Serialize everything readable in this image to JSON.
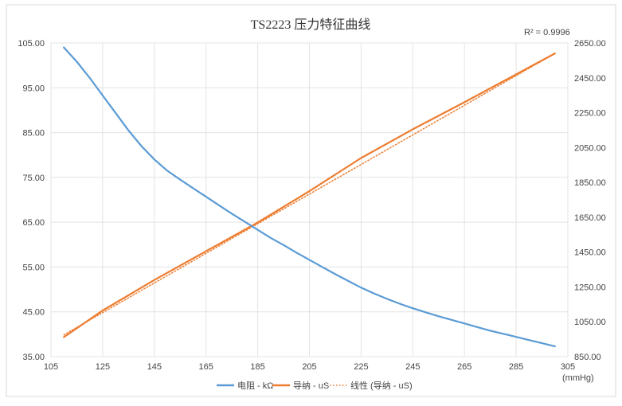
{
  "chart_data": {
    "type": "line",
    "title": "TS2223 压力特征曲线",
    "r_squared": "R² = 0.9996",
    "x_unit": "(mmHg)",
    "x_ticks": [
      "105",
      "125",
      "145",
      "165",
      "185",
      "205",
      "225",
      "245",
      "265",
      "285",
      "305"
    ],
    "y_left_ticks": [
      "35.00",
      "45.00",
      "55.00",
      "65.00",
      "75.00",
      "85.00",
      "95.00",
      "105.00"
    ],
    "y_right_ticks": [
      "850.00",
      "1050.00",
      "1250.00",
      "1450.00",
      "1650.00",
      "1850.00",
      "2050.00",
      "2250.00",
      "2450.00",
      "2650.00"
    ],
    "xlim": [
      105,
      305
    ],
    "ylim_left": [
      35,
      105
    ],
    "ylim_right": [
      850,
      2650
    ],
    "grid": true,
    "legend_position": "bottom",
    "series": [
      {
        "name": "电阻 - kΩ",
        "axis": "left",
        "color": "#5b9bd5",
        "style": "solid",
        "x": [
          110,
          115,
          120,
          125,
          130,
          135,
          140,
          145,
          150,
          155,
          160,
          165,
          170,
          175,
          180,
          185,
          190,
          195,
          200,
          205,
          210,
          215,
          220,
          225,
          230,
          235,
          240,
          245,
          250,
          255,
          260,
          265,
          270,
          275,
          280,
          285,
          290,
          295,
          300
        ],
        "y": [
          104,
          100.8,
          97.2,
          93.3,
          89.4,
          85.5,
          82.0,
          79.0,
          76.5,
          74.5,
          72.6,
          70.7,
          68.8,
          66.9,
          65.1,
          63.3,
          61.5,
          59.9,
          58.2,
          56.6,
          55.0,
          53.4,
          51.9,
          50.4,
          49.1,
          47.9,
          46.8,
          45.8,
          44.9,
          44.0,
          43.2,
          42.4,
          41.6,
          40.8,
          40.1,
          39.4,
          38.7,
          38.0,
          37.3
        ]
      },
      {
        "name": "导纳 - uS",
        "axis": "right",
        "color": "#ed7d31",
        "style": "solid",
        "x": [
          110,
          125,
          145,
          165,
          185,
          205,
          225,
          245,
          265,
          285,
          300
        ],
        "y": [
          962,
          1115,
          1290,
          1455,
          1620,
          1800,
          1990,
          2155,
          2310,
          2470,
          2590
        ]
      },
      {
        "name": "线性 (导纳 - uS)",
        "axis": "right",
        "color": "#ed7d31",
        "style": "dotted",
        "x": [
          110,
          300
        ],
        "y": [
          975,
          2590
        ]
      }
    ]
  }
}
